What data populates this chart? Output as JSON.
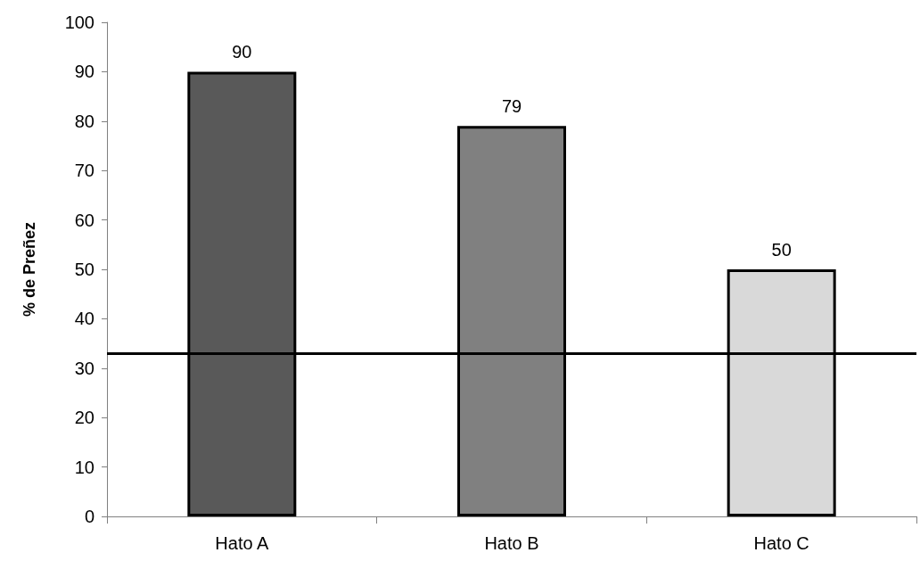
{
  "chart_data": {
    "type": "bar",
    "ylabel": "% de Preñez",
    "categories": [
      "Hato A",
      "Hato B",
      "Hato C"
    ],
    "values": [
      90,
      79,
      50
    ],
    "colors": [
      "#595959",
      "#808080",
      "#d9d9d9"
    ],
    "ylim": [
      0,
      100
    ],
    "yticks": [
      0,
      10,
      20,
      30,
      40,
      50,
      60,
      70,
      80,
      90,
      100
    ],
    "grid": false,
    "data_labels": true,
    "ref_lines": [
      {
        "axis": "y",
        "value": 33,
        "color": "#000000",
        "line_style": "solid"
      }
    ]
  }
}
